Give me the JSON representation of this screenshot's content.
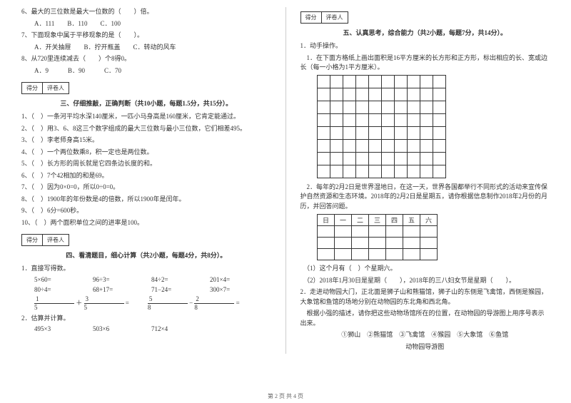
{
  "left": {
    "q6": {
      "stem": "6、最大的三位数是最大一位数的（　　）倍。",
      "opts": "A．111　　B．110　　C．100"
    },
    "q7": {
      "stem": "7、下面现象中属于平移现象的是（　　）。",
      "opts": "A．开关抽屉　　B．拧开瓶盖　　C．转动的风车"
    },
    "q8": {
      "stem": "8、从720里连续减去（　　）个8得0。",
      "opts": "A．9　　　B．90　　　C．70"
    },
    "scoreLabels": {
      "a": "得分",
      "b": "评卷人"
    },
    "sec3": {
      "title": "三、仔细推敲，正确判断（共10小题，每题1.5分，共15分）。",
      "items": [
        "1、（　）一条河平均水深140厘米，一匹小马身高是160厘米，它肯定能通过。",
        "2、（　）用3、6、8这三个数字组成的最大三位数与最小三位数，它们相差495。",
        "3、（　）李老师身高15米。",
        "4、（　）一个两位数乘8，积一定也是两位数。",
        "5、（　）长方形的周长就是它四条边长度的和。",
        "6、（　）7个42相加的和是69。",
        "7、（　）因为0×0=0，所以0÷0=0。",
        "8、（　）1900年的年份数是4的倍数，所以1900年是闰年。",
        "9、（　）6分=600秒。",
        "10、（　）两个面积单位之间的进率是100。"
      ]
    },
    "sec4": {
      "title": "四、看清题目，细心计算（共2小题，每题4分，共8分）。",
      "p1": "1．直接写得数。",
      "row1": [
        "5×60=",
        "96÷3=",
        "84÷2=",
        "201×4="
      ],
      "row2": [
        "80÷4=",
        "68+17=",
        "71−24=",
        "300×7="
      ],
      "fr1": {
        "a": "1",
        "b": "5",
        "c": "3",
        "d": "5"
      },
      "fr2": {
        "a": "5",
        "b": "8",
        "c": "2",
        "d": "8"
      },
      "p2": "2．估算并计算。",
      "row3": [
        "495×3",
        "503×6",
        "712×4"
      ]
    }
  },
  "right": {
    "scoreLabels": {
      "a": "得分",
      "b": "评卷人"
    },
    "sec5": {
      "title": "五、认真思考，综合能力（共2小题，每题7分，共14分）。",
      "p1": "1．动手操作。",
      "p1a": "　1．在下面方格纸上画出面积是16平方厘米的长方形和正方形，标出相应的长、宽或边长（每一小格为1平方厘米）。",
      "p2": "　2．每年的2月2日是世界湿地日，在这一天，世界各国都举行不同形式的活动来宣传保护自然资源和生态环境。2018年的2月2日是星期五，请你根据信息制作2018年2月份的月历，并回答问题。",
      "cal": [
        "日",
        "一",
        "二",
        "三",
        "四",
        "五",
        "六"
      ],
      "q1": "　（1）这个月有（　）个星期六。",
      "q2": "　（2）2018年1月30日是星期（　　），2018年的三八妇女节是星期（　　）。",
      "p3": "2．走进动物园大门，正北面是狮子山和熊猫馆，狮子山的东侧是飞禽馆，西侧是猴园，大象馆和鱼馆的场地分别在动物园的东北角和西北角。",
      "p3a": "　根据小强的描述，请你把这些动物场馆所在的位置，在动物园的导游图上用序号表示出来。",
      "legend": "①狮山　②熊猫馆　③飞禽馆　④猴园　⑤大象馆　⑥鱼馆",
      "map": "动物园导游图"
    }
  },
  "footer": "第 2 页 共 4 页"
}
